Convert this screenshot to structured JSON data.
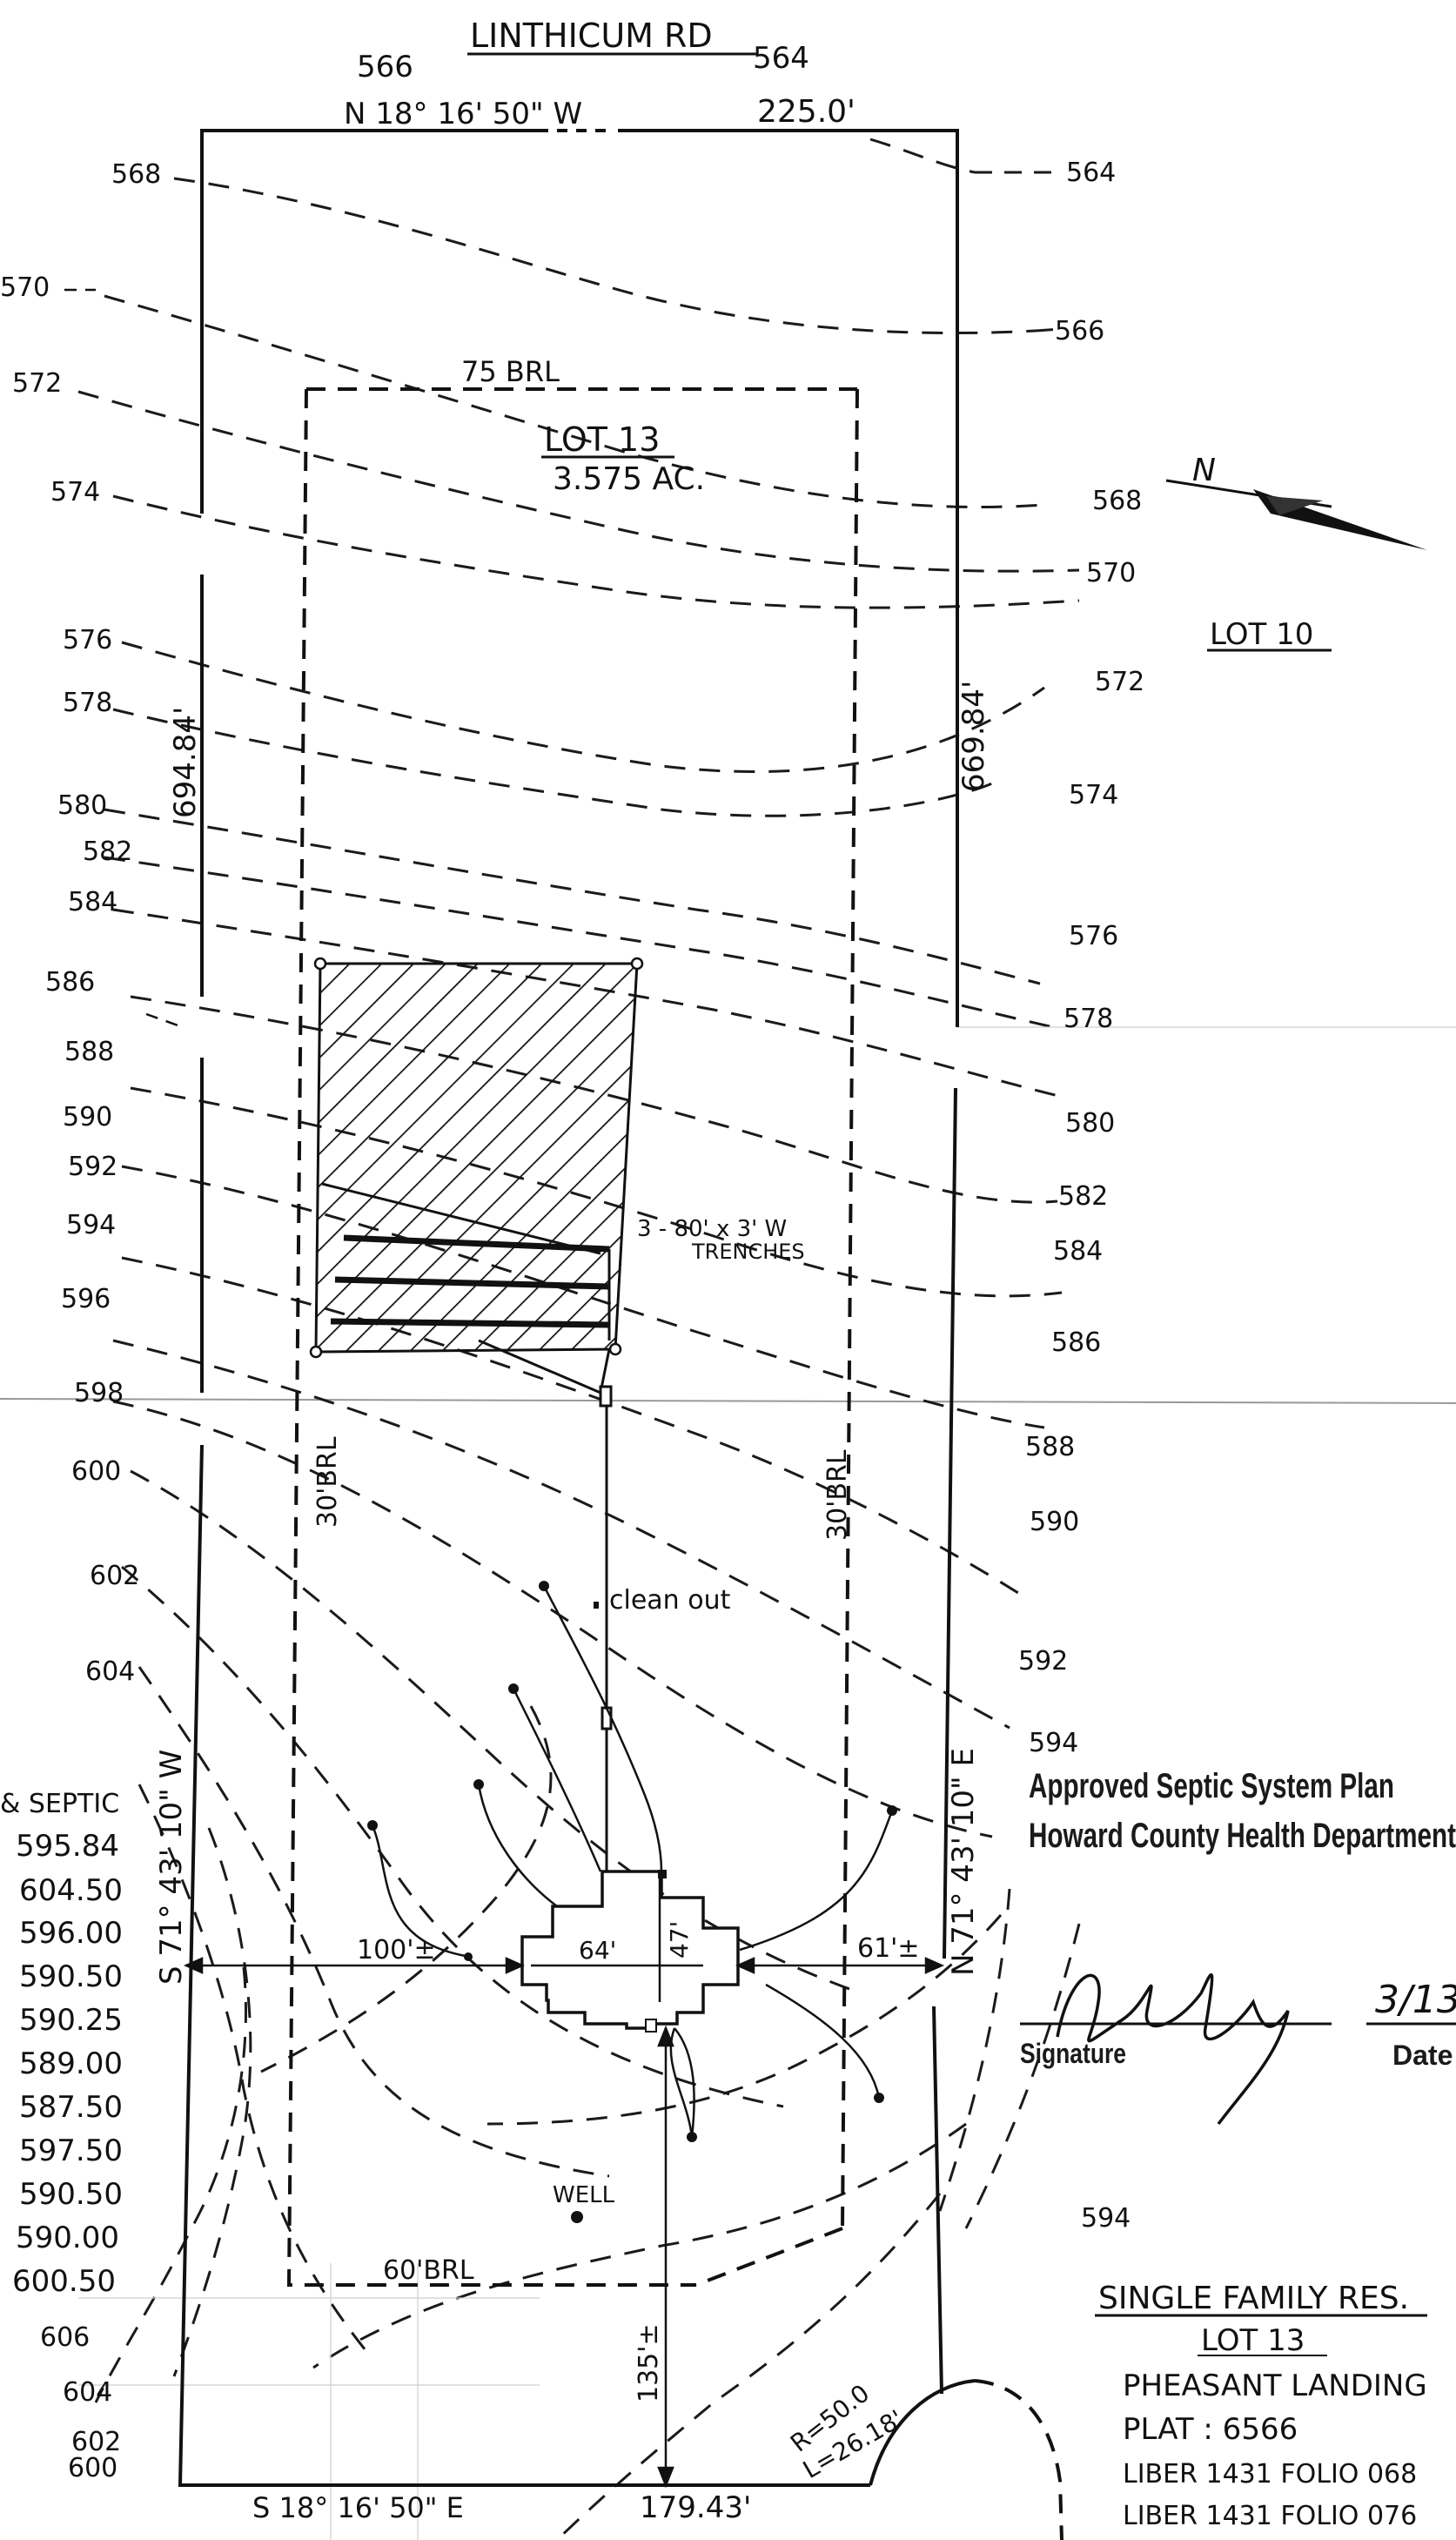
{
  "road": {
    "name": "LINTHICUM RD"
  },
  "bearings": {
    "north_boundary": "N 18° 16' 50\" W",
    "north_length": "225.0'",
    "east_boundary": "N 71° 43' 10\" E",
    "east_length": "669.84'",
    "west_boundary": "S 71° 43' 10\" W",
    "west_length": "694.84'",
    "south_boundary": "S 18° 16' 50\" E",
    "south_length": "179.43'",
    "curve_radius": "R=50.0",
    "curve_length": "L=26.18'"
  },
  "top_contours": {
    "left": "566",
    "right": "564"
  },
  "left_contours": [
    "568",
    "570",
    "572",
    "574",
    "576",
    "578",
    "580",
    "582",
    "584",
    "586",
    "588",
    "590",
    "592",
    "594",
    "596",
    "598",
    "600",
    "602",
    "604",
    "606",
    "604",
    "602",
    "600"
  ],
  "right_contours": [
    "564",
    "566",
    "568",
    "570",
    "572",
    "574",
    "576",
    "578",
    "580",
    "582",
    "584",
    "586",
    "588",
    "590",
    "592",
    "594",
    "594"
  ],
  "lot": {
    "name": "LOT 13",
    "area": "3.575 AC."
  },
  "adjacent_lot": "LOT 10",
  "north_arrow": "N",
  "setbacks": {
    "front": "75 BRL",
    "side_left": "30'BRL",
    "side_right": "30'BRL",
    "rear": "60'BRL"
  },
  "septic": {
    "trench_label_1": "3 - 80' x 3' W",
    "trench_label_2": "TRENCHES",
    "cleanout": "clean out"
  },
  "house": {
    "width": "64'",
    "depth": "47'"
  },
  "dimensions": {
    "left": "100'±",
    "right": "61'±",
    "rear": "135'±"
  },
  "well": "WELL",
  "septic_elevations": {
    "header": "& SEPTIC",
    "values": [
      "595.84",
      "604.50",
      "596.00",
      "590.50",
      "590.25",
      "589.00",
      "587.50",
      "597.50",
      "590.50",
      "590.00",
      "600.50"
    ]
  },
  "approval": {
    "line1": "Approved Septic System Plan",
    "line2": "Howard County Health Department",
    "signature_label": "Signature",
    "date_label": "Date",
    "date_value": "3/13"
  },
  "title_block": {
    "title": "SINGLE FAMILY RES.",
    "lot": "LOT 13",
    "subdivision": "PHEASANT LANDING",
    "plat": "PLAT : 6566",
    "liber1": "LIBER 1431 FOLIO 068",
    "liber2": "LIBER 1431 FOLIO 076"
  }
}
